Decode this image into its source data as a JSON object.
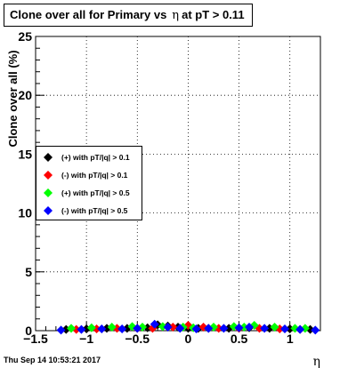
{
  "title": {
    "text_before": "Clone  over all for Primary vs",
    "eta_symbol": "η",
    "text_after": "at pT > 0.11"
  },
  "footer": {
    "date": "Thu Sep 14 10:53:21 2017"
  },
  "chart_data": {
    "type": "scatter",
    "xlabel": "η",
    "ylabel": "Clone  over all (%)",
    "xlim": [
      -1.5,
      1.3
    ],
    "ylim": [
      0,
      25
    ],
    "x_ticks": [
      -1.5,
      -1,
      -0.5,
      0,
      0.5,
      1
    ],
    "x_tick_labels": [
      "−1.5",
      "−1",
      "−0.5",
      "0",
      "0.5",
      "1"
    ],
    "y_ticks": [
      0,
      5,
      10,
      15,
      20,
      25
    ],
    "y_tick_labels": [
      "0",
      "5",
      "10",
      "15",
      "20",
      "25"
    ],
    "grid": true,
    "legend_position": "left",
    "series": [
      {
        "name": "(+) with pT/|q| > 0.1",
        "color": "#000000",
        "x": [
          -1.2,
          -1.0,
          -0.8,
          -0.6,
          -0.4,
          -0.3,
          -0.2,
          -0.1,
          0.0,
          0.1,
          0.2,
          0.4,
          0.6,
          0.8,
          1.0,
          1.2
        ],
        "y": [
          0.1,
          0.15,
          0.2,
          0.2,
          0.25,
          0.5,
          0.4,
          0.3,
          0.2,
          0.2,
          0.2,
          0.2,
          0.25,
          0.2,
          0.15,
          0.1
        ]
      },
      {
        "name": "(-) with pT/|q| > 0.1",
        "color": "#ff0000",
        "x": [
          -1.1,
          -0.9,
          -0.7,
          -0.5,
          -0.35,
          -0.15,
          0.0,
          0.15,
          0.3,
          0.5,
          0.7,
          0.9,
          1.1
        ],
        "y": [
          0.1,
          0.15,
          0.2,
          0.2,
          0.2,
          0.3,
          0.45,
          0.3,
          0.2,
          0.2,
          0.2,
          0.15,
          0.1
        ]
      },
      {
        "name": "(+) with pT/|q| > 0.5",
        "color": "#00ff00",
        "x": [
          -1.15,
          -0.95,
          -0.75,
          -0.55,
          -0.45,
          -0.25,
          -0.05,
          0.05,
          0.25,
          0.45,
          0.55,
          0.65,
          0.85,
          1.05,
          1.15
        ],
        "y": [
          0.2,
          0.25,
          0.3,
          0.35,
          0.3,
          0.35,
          0.3,
          0.25,
          0.3,
          0.35,
          0.3,
          0.45,
          0.3,
          0.2,
          0.2
        ]
      },
      {
        "name": "(-) with pT/|q| > 0.5",
        "color": "#0000ff",
        "x": [
          -1.25,
          -1.05,
          -0.85,
          -0.65,
          -0.5,
          -0.33,
          -0.2,
          -0.08,
          0.08,
          0.2,
          0.35,
          0.5,
          0.6,
          0.75,
          0.95,
          1.1,
          1.25
        ],
        "y": [
          0.05,
          0.1,
          0.15,
          0.15,
          0.2,
          0.55,
          0.3,
          0.2,
          0.15,
          0.2,
          0.2,
          0.25,
          0.3,
          0.2,
          0.15,
          0.1,
          0.05
        ]
      }
    ]
  }
}
